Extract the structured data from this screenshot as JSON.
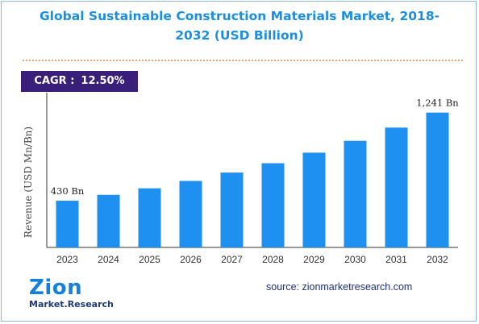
{
  "header": {
    "title_line1": "Global Sustainable Construction Materials Market, 2018-",
    "title_line2": "2032 (USD Billion)"
  },
  "cagr": {
    "label": "CAGR :",
    "value": "12.50%"
  },
  "footer": {
    "logo_top": "Zion",
    "logo_bottom": "Market.Research",
    "source": "source: zionmarketresearch.com"
  },
  "colors": {
    "bar": "#1e90f0",
    "title": "#1a8fe0",
    "cagr_bg": "#3a1f7a",
    "divider": "#f0a060"
  },
  "chart_data": {
    "type": "bar",
    "title": "Global Sustainable Construction Materials Market, 2018-2032 (USD Billion)",
    "xlabel": "",
    "ylabel": "Revenue (USD Mn/Bn)",
    "categories": [
      "2023",
      "2024",
      "2025",
      "2026",
      "2027",
      "2028",
      "2029",
      "2030",
      "2031",
      "2032"
    ],
    "values": [
      430,
      484,
      544,
      612,
      689,
      775,
      872,
      981,
      1103,
      1241
    ],
    "value_labels": [
      "430 Bn",
      "",
      "",
      "",
      "",
      "",
      "",
      "",
      "",
      "1,241 Bn"
    ],
    "ylim": [
      0,
      1350
    ],
    "grid": false,
    "legend": "none"
  }
}
